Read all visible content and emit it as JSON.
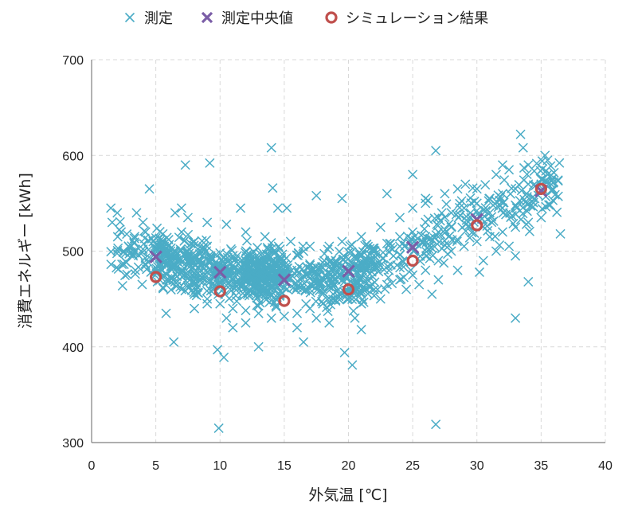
{
  "chart_data": {
    "type": "scatter",
    "xlabel": "外気温 [℃]",
    "ylabel": "消費エネルギー [kWh]",
    "xlim": [
      0,
      40
    ],
    "ylim": [
      300,
      700
    ],
    "xticks": [
      "0",
      "5",
      "10",
      "15",
      "20",
      "25",
      "30",
      "35",
      "40"
    ],
    "yticks": [
      "300",
      "400",
      "500",
      "600",
      "700"
    ],
    "grid": true,
    "legend_position": "top",
    "series": [
      {
        "name": "測定",
        "marker": "x",
        "color": "#4bacc6",
        "description": "approximately 1400 daily measurements; main band follows a U shape from about 500 kWh at 2–8℃, about 470 kWh at 12–20℃, rising to about 560 kWh at 35℃",
        "points": [
          [
            1.5,
            545
          ],
          [
            1.6,
            530
          ],
          [
            2.0,
            540
          ],
          [
            2.3,
            520
          ],
          [
            2.5,
            500
          ],
          [
            3.5,
            540
          ],
          [
            4.0,
            530
          ],
          [
            4.2,
            520
          ],
          [
            4.5,
            565
          ],
          [
            4.8,
            510
          ],
          [
            6.4,
            405
          ],
          [
            5.8,
            435
          ],
          [
            7.3,
            590
          ],
          [
            9.2,
            592
          ],
          [
            9.8,
            397
          ],
          [
            9.9,
            315
          ],
          [
            10.3,
            389
          ],
          [
            11.0,
            420
          ],
          [
            11.6,
            545
          ],
          [
            13.0,
            400
          ],
          [
            14.0,
            608
          ],
          [
            14.1,
            566
          ],
          [
            14.5,
            545
          ],
          [
            15.2,
            545
          ],
          [
            16.5,
            405
          ],
          [
            17.5,
            558
          ],
          [
            19.5,
            555
          ],
          [
            19.7,
            394
          ],
          [
            20.3,
            381
          ],
          [
            21.0,
            418
          ],
          [
            23.0,
            560
          ],
          [
            25.0,
            580
          ],
          [
            26.0,
            555
          ],
          [
            26.8,
            605
          ],
          [
            26.8,
            319
          ],
          [
            30.2,
            478
          ],
          [
            32.0,
            590
          ],
          [
            32.5,
            505
          ],
          [
            33.0,
            430
          ],
          [
            33.4,
            622
          ],
          [
            33.6,
            608
          ],
          [
            34.0,
            468
          ],
          [
            35.3,
            600
          ],
          [
            36.0,
            582
          ],
          [
            36.5,
            518
          ],
          [
            34.5,
            555
          ],
          [
            35.0,
            570
          ],
          [
            33.0,
            548
          ],
          [
            31.0,
            540
          ],
          [
            29.5,
            540
          ],
          [
            28.0,
            525
          ],
          [
            27.0,
            520
          ],
          [
            26.0,
            515
          ],
          [
            24.0,
            505
          ],
          [
            23.5,
            495
          ],
          [
            22.0,
            485
          ],
          [
            21.5,
            470
          ],
          [
            20.5,
            465
          ],
          [
            19.0,
            470
          ],
          [
            18.0,
            460
          ],
          [
            17.0,
            465
          ],
          [
            16.0,
            462
          ],
          [
            14.5,
            470
          ],
          [
            13.5,
            475
          ],
          [
            12.5,
            478
          ],
          [
            11.5,
            480
          ],
          [
            10.5,
            482
          ],
          [
            9.5,
            485
          ],
          [
            8.5,
            490
          ],
          [
            7.5,
            495
          ],
          [
            6.5,
            500
          ],
          [
            5.5,
            505
          ],
          [
            5.0,
            495
          ],
          [
            6.0,
            512
          ],
          [
            7.0,
            520
          ],
          [
            8.0,
            510
          ],
          [
            9.0,
            505
          ],
          [
            10.0,
            498
          ],
          [
            11.0,
            495
          ],
          [
            12.0,
            490
          ],
          [
            13.0,
            485
          ],
          [
            14.0,
            482
          ],
          [
            15.0,
            478
          ],
          [
            16.0,
            480
          ],
          [
            17.0,
            485
          ],
          [
            18.0,
            488
          ],
          [
            19.0,
            490
          ],
          [
            20.0,
            492
          ],
          [
            21.0,
            495
          ],
          [
            22.0,
            500
          ],
          [
            23.0,
            508
          ],
          [
            24.0,
            515
          ],
          [
            25.0,
            520
          ],
          [
            26.0,
            530
          ],
          [
            27.0,
            535
          ],
          [
            28.0,
            540
          ],
          [
            29.0,
            545
          ],
          [
            30.0,
            550
          ],
          [
            31.0,
            555
          ],
          [
            32.0,
            560
          ],
          [
            33.0,
            565
          ],
          [
            34.0,
            570
          ],
          [
            35.0,
            575
          ],
          [
            35.5,
            580
          ],
          [
            6.0,
            470
          ],
          [
            7.0,
            460
          ],
          [
            8.0,
            455
          ],
          [
            9.0,
            450
          ],
          [
            10.0,
            445
          ],
          [
            11.0,
            440
          ],
          [
            12.0,
            438
          ],
          [
            13.0,
            435
          ],
          [
            14.0,
            430
          ],
          [
            15.0,
            432
          ],
          [
            16.0,
            435
          ],
          [
            17.0,
            440
          ],
          [
            18.0,
            445
          ],
          [
            19.0,
            448
          ],
          [
            20.0,
            450
          ],
          [
            21.0,
            455
          ],
          [
            22.0,
            460
          ],
          [
            23.0,
            465
          ],
          [
            24.0,
            470
          ],
          [
            25.0,
            475
          ],
          [
            26.0,
            480
          ],
          [
            27.0,
            490
          ],
          [
            28.0,
            500
          ],
          [
            29.0,
            505
          ],
          [
            30.0,
            510
          ],
          [
            31.0,
            515
          ],
          [
            32.0,
            520
          ],
          [
            33.0,
            525
          ],
          [
            34.0,
            530
          ],
          [
            35.0,
            535
          ],
          [
            8.0,
            440
          ],
          [
            9.0,
            445
          ],
          [
            10.5,
            430
          ],
          [
            12.0,
            425
          ],
          [
            16.0,
            420
          ],
          [
            17.5,
            430
          ],
          [
            18.5,
            425
          ],
          [
            20.5,
            430
          ],
          [
            21.0,
            445
          ],
          [
            22.5,
            450
          ],
          [
            24.5,
            460
          ],
          [
            25.5,
            465
          ],
          [
            26.5,
            455
          ],
          [
            27.0,
            470
          ],
          [
            28.5,
            480
          ],
          [
            30.5,
            490
          ],
          [
            31.5,
            500
          ],
          [
            33.0,
            495
          ],
          [
            6.5,
            540
          ],
          [
            7.0,
            545
          ],
          [
            7.5,
            535
          ],
          [
            9.0,
            530
          ],
          [
            10.5,
            528
          ],
          [
            12.0,
            520
          ],
          [
            13.5,
            515
          ],
          [
            15.5,
            510
          ],
          [
            17.0,
            505
          ],
          [
            18.5,
            505
          ],
          [
            19.5,
            510
          ],
          [
            21.0,
            515
          ],
          [
            22.5,
            525
          ],
          [
            24.0,
            535
          ],
          [
            25.0,
            545
          ],
          [
            26.0,
            550
          ],
          [
            27.5,
            560
          ],
          [
            28.5,
            565
          ],
          [
            30.0,
            565
          ],
          [
            31.5,
            580
          ],
          [
            32.5,
            585
          ],
          [
            34.0,
            590
          ],
          [
            35.5,
            595
          ]
        ]
      },
      {
        "name": "測定中央値",
        "marker": "x",
        "color": "#7b5ea7",
        "points": [
          [
            5,
            494
          ],
          [
            10,
            478
          ],
          [
            15,
            470
          ],
          [
            20,
            479
          ],
          [
            25,
            504
          ],
          [
            30,
            533
          ],
          [
            35,
            563
          ]
        ]
      },
      {
        "name": "シミュレーション結果",
        "marker": "o",
        "color": "#c0504d",
        "points": [
          [
            5,
            473
          ],
          [
            10,
            458
          ],
          [
            15,
            448
          ],
          [
            20,
            460
          ],
          [
            25,
            490
          ],
          [
            30,
            527
          ],
          [
            35,
            565
          ]
        ]
      }
    ]
  }
}
